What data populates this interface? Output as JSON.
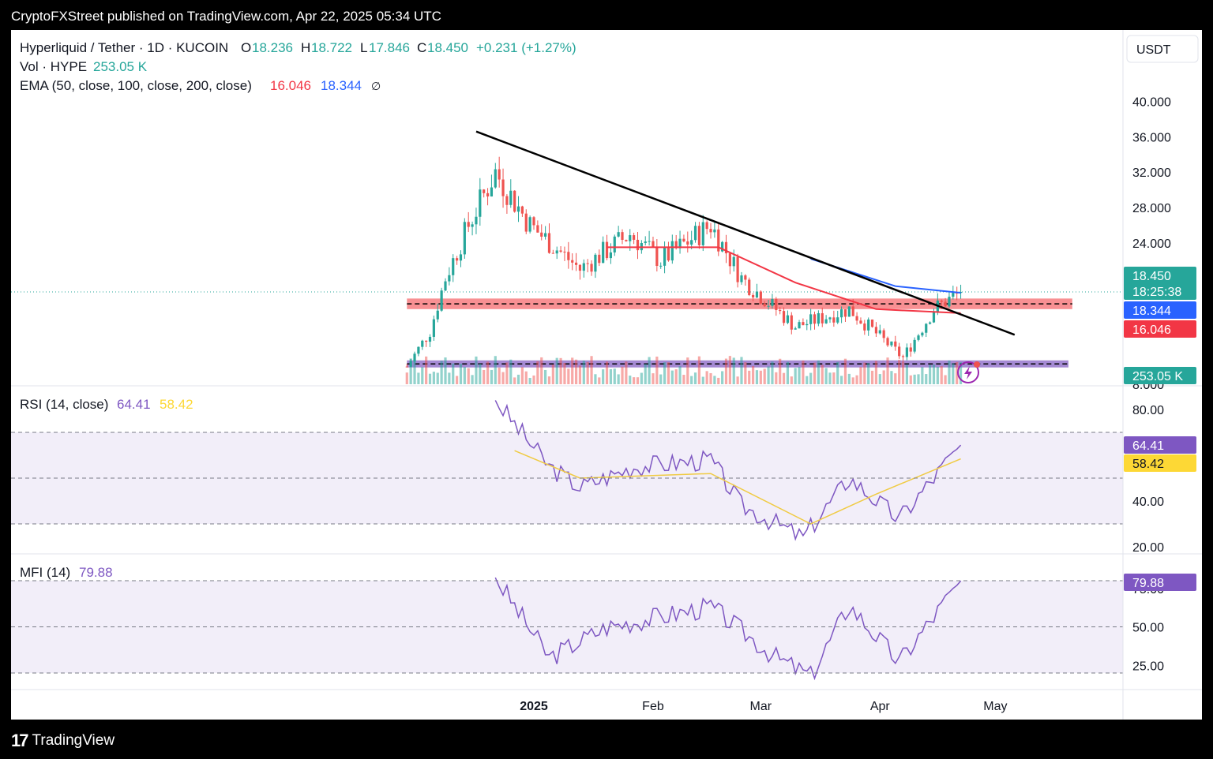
{
  "header": {
    "published": "CryptoFXStreet published on TradingView.com, Apr 22, 2025 05:34 UTC"
  },
  "footer": {
    "brand": "TradingView"
  },
  "legend": {
    "symbol": "Hyperliquid / Tether · 1D · KUCOIN",
    "o_label": "O",
    "o": "18.236",
    "h_label": "H",
    "h": "18.722",
    "l_label": "L",
    "l": "17.846",
    "c_label": "C",
    "c": "18.450",
    "change": "+0.231 (+1.27%)",
    "vol_label": "Vol · HYPE",
    "vol": "253.05 K",
    "ema_label": "EMA (50, close, 100, close, 200, close)",
    "ema1": "16.046",
    "ema2": "18.344",
    "ema_icon": "∅"
  },
  "rsi": {
    "label": "RSI (14, close)",
    "value": "64.41",
    "ma": "58.42"
  },
  "mfi": {
    "label": "MFI (14)",
    "value": "79.88"
  },
  "price_axis": {
    "currency": "USDT"
  },
  "badges": {
    "price": "18.450",
    "countdown": "18:25:38",
    "ema_blue": "18.344",
    "ema_red": "16.046",
    "volume": "253.05 K",
    "rsi": "64.41",
    "rsi_ma": "58.42",
    "mfi": "79.88"
  },
  "colors": {
    "up": "#26a69a",
    "down": "#ef5350",
    "ema50": "#f23645",
    "ema100": "#2962ff",
    "rsi": "#7e57c2",
    "rsi_ma": "#fdd835",
    "resistance_zone": "#f77c80",
    "support_zone": "#9575cd"
  },
  "chart_data": [
    {
      "type": "candlestick",
      "title": "Hyperliquid / Tether · 1D · KUCOIN",
      "y_ticks": [
        "40.000",
        "36.000",
        "32.000",
        "28.000",
        "24.000",
        "20.000",
        "8.000"
      ],
      "x_ticks": [
        "2025",
        "Feb",
        "Mar",
        "Apr",
        "May"
      ],
      "ylim": [
        7.6,
        44
      ],
      "close_path_key_points": [
        {
          "date": "2024-11-29",
          "close": 10
        },
        {
          "date": "2024-12-05",
          "close": 14
        },
        {
          "date": "2024-12-09",
          "close": 20
        },
        {
          "date": "2024-12-15",
          "close": 26
        },
        {
          "date": "2024-12-22",
          "close": 32
        },
        {
          "date": "2024-12-31",
          "close": 26
        },
        {
          "date": "2025-01-13",
          "close": 21
        },
        {
          "date": "2025-01-26",
          "close": 25
        },
        {
          "date": "2025-02-03",
          "close": 22
        },
        {
          "date": "2025-02-16",
          "close": 26
        },
        {
          "date": "2025-02-24",
          "close": 20
        },
        {
          "date": "2025-03-10",
          "close": 14.5
        },
        {
          "date": "2025-03-24",
          "close": 16.5
        },
        {
          "date": "2025-04-07",
          "close": 11
        },
        {
          "date": "2025-04-15",
          "close": 16.5
        },
        {
          "date": "2025-04-22",
          "close": 18.45
        }
      ],
      "ema50_points": [
        {
          "date": "2025-01-20",
          "value": 23.5
        },
        {
          "date": "2025-02-18",
          "value": 23.5
        },
        {
          "date": "2025-03-10",
          "value": 19.5
        },
        {
          "date": "2025-03-31",
          "value": 16.5
        },
        {
          "date": "2025-04-22",
          "value": 16.046
        }
      ],
      "ema100_points": [
        {
          "date": "2025-03-14",
          "value": 22.2
        },
        {
          "date": "2025-04-05",
          "value": 19.1
        },
        {
          "date": "2025-04-22",
          "value": 18.344
        }
      ],
      "trendline": [
        {
          "date": "2024-12-17",
          "value": 36.6
        },
        {
          "date": "2025-05-06",
          "value": 13.6
        }
      ],
      "resistance_zone": [
        16.5,
        17.7
      ],
      "support_zone": [
        9.9,
        10.7
      ],
      "last_price": 18.45
    },
    {
      "type": "line",
      "title": "RSI (14, close)",
      "y_ticks": [
        "80.00",
        "40.00",
        "20.00"
      ],
      "ylim": [
        20,
        85
      ],
      "levels": [
        70,
        50,
        30
      ],
      "series": [
        {
          "name": "RSI",
          "points": [
            {
              "date": "2024-12-22",
              "v": 84
            },
            {
              "date": "2025-01-05",
              "v": 55
            },
            {
              "date": "2025-01-13",
              "v": 46
            },
            {
              "date": "2025-01-27",
              "v": 55
            },
            {
              "date": "2025-02-16",
              "v": 58
            },
            {
              "date": "2025-02-24",
              "v": 38
            },
            {
              "date": "2025-03-12",
              "v": 24
            },
            {
              "date": "2025-03-24",
              "v": 50
            },
            {
              "date": "2025-04-06",
              "v": 32
            },
            {
              "date": "2025-04-22",
              "v": 64.41
            }
          ]
        },
        {
          "name": "RSI MA",
          "points": [
            {
              "date": "2024-12-27",
              "v": 62
            },
            {
              "date": "2025-01-13",
              "v": 50
            },
            {
              "date": "2025-02-16",
              "v": 52
            },
            {
              "date": "2025-03-14",
              "v": 30
            },
            {
              "date": "2025-03-31",
              "v": 43
            },
            {
              "date": "2025-04-22",
              "v": 58.42
            }
          ]
        }
      ]
    },
    {
      "type": "line",
      "title": "MFI (14)",
      "y_ticks": [
        "75.00",
        "50.00",
        "25.00"
      ],
      "ylim": [
        14,
        82
      ],
      "levels": [
        80,
        50,
        20
      ],
      "series": [
        {
          "name": "MFI",
          "points": [
            {
              "date": "2024-12-22",
              "v": 82
            },
            {
              "date": "2025-01-05",
              "v": 30
            },
            {
              "date": "2025-01-20",
              "v": 50
            },
            {
              "date": "2025-02-16",
              "v": 63
            },
            {
              "date": "2025-03-05",
              "v": 30
            },
            {
              "date": "2025-03-14",
              "v": 18
            },
            {
              "date": "2025-03-24",
              "v": 64
            },
            {
              "date": "2025-04-06",
              "v": 27
            },
            {
              "date": "2025-04-22",
              "v": 79.88
            }
          ]
        }
      ]
    }
  ]
}
